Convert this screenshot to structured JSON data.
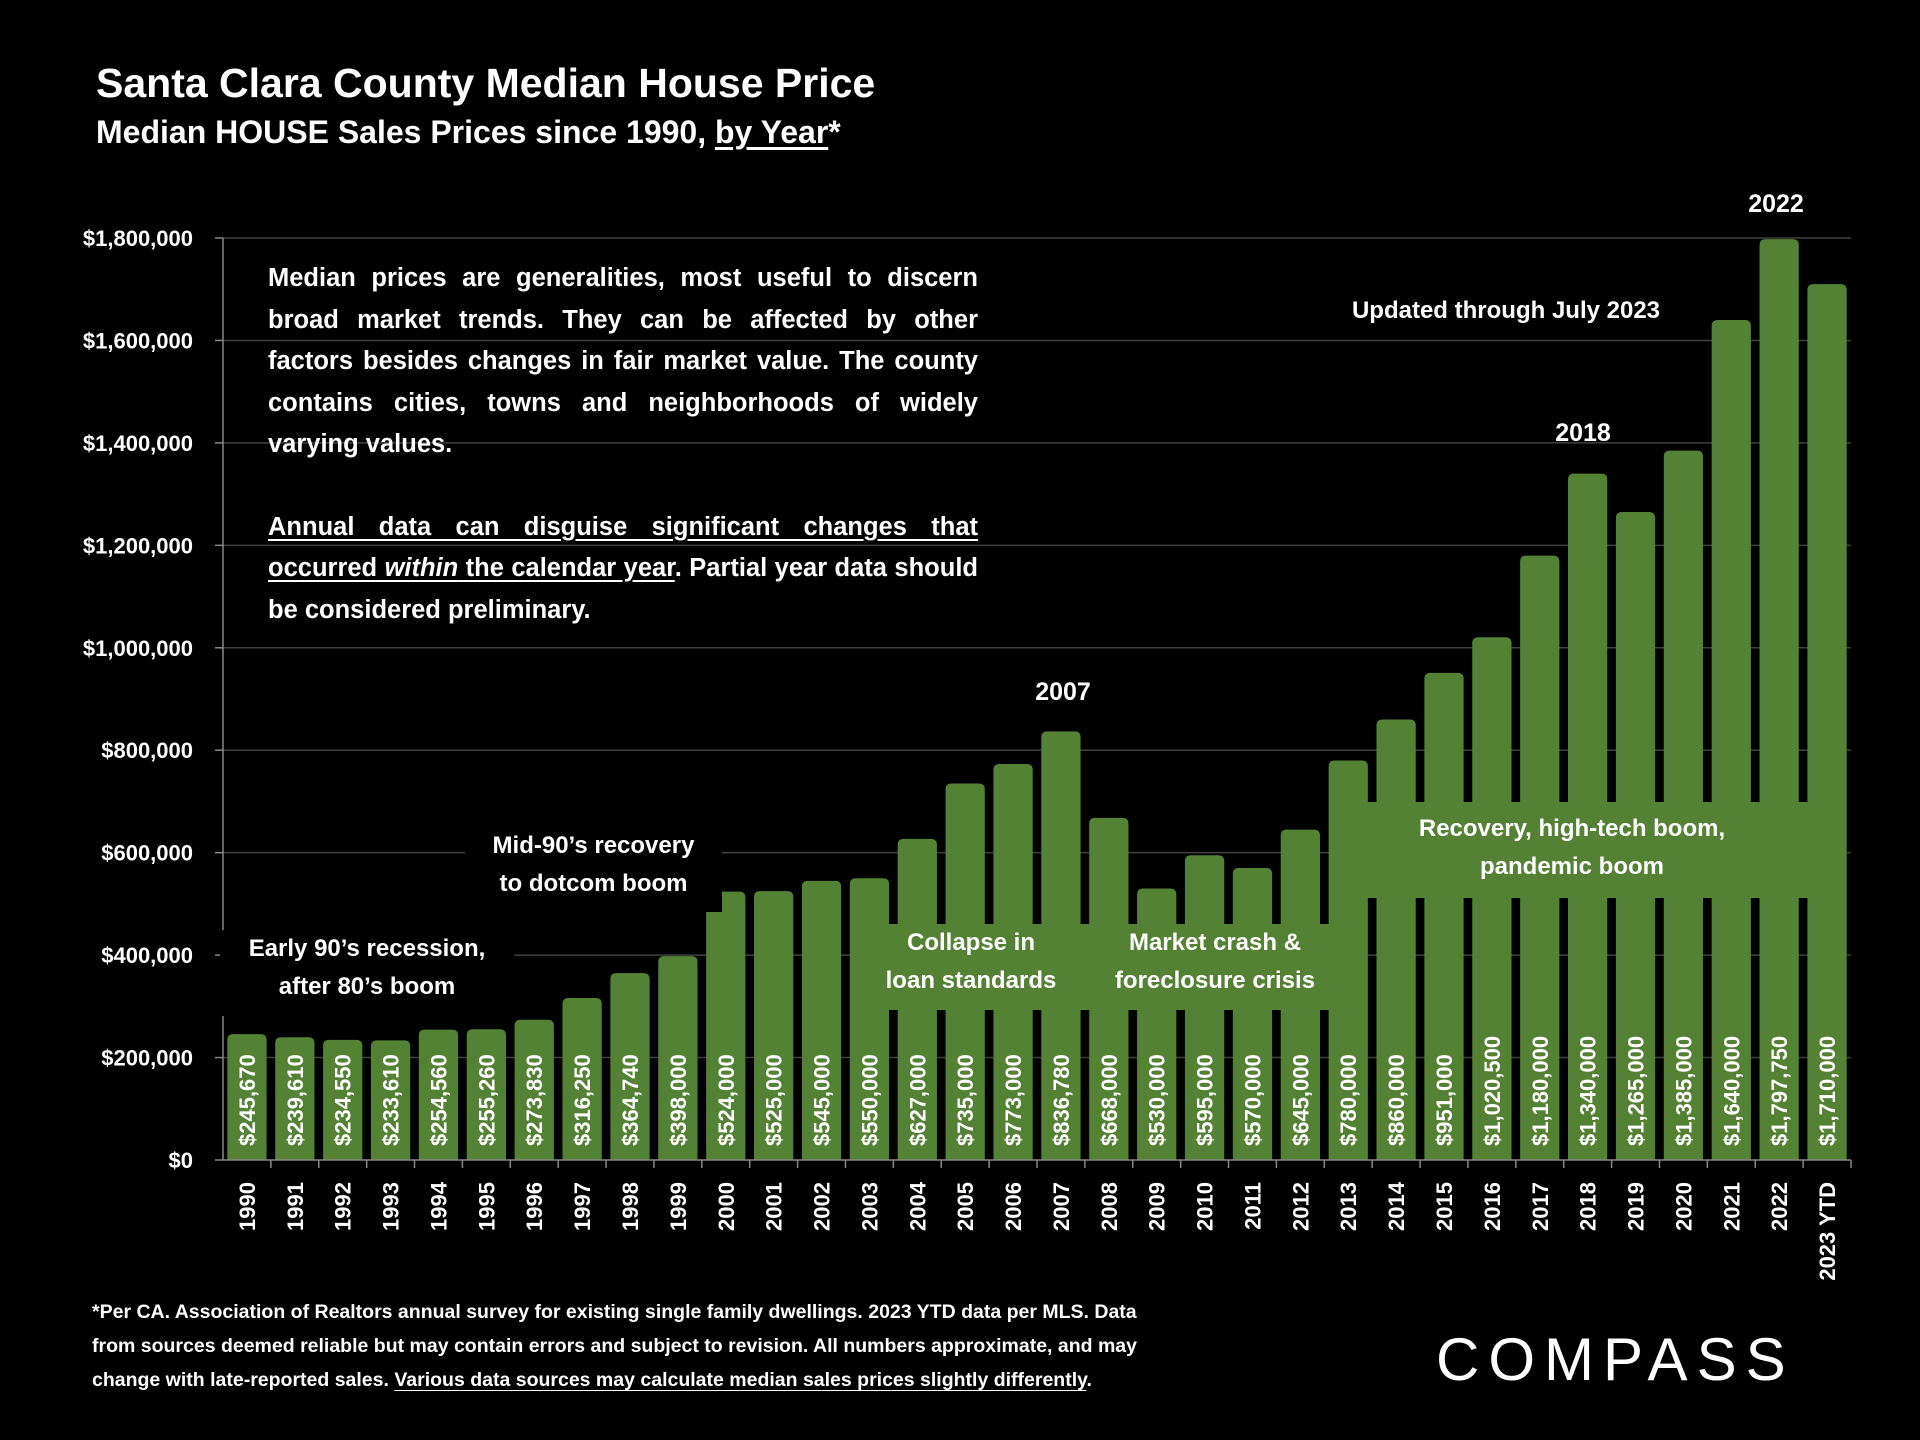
{
  "header": {
    "title": "Santa Clara County Median House Price",
    "subtitle_pre": "Median HOUSE Sales Prices since 1990, ",
    "subtitle_link": "by Year",
    "subtitle_post": "*"
  },
  "note": {
    "p1": "Median prices are generalities, most useful to discern broad market trends. They can be affected by other factors besides changes in fair market value. The county contains cities, towns and neighborhoods of widely varying values.",
    "p2_u1": "Annual data can disguise significant changes that occurred ",
    "p2_u_em": "within",
    "p2_u2": " the calendar year",
    "p2_rest": ". Partial year data should be considered preliminary."
  },
  "annotations": {
    "early90s": [
      "Early 90’s recession,",
      "after 80’s boom"
    ],
    "mid90s": [
      "Mid-90’s recovery",
      "to dotcom boom"
    ],
    "collapse": [
      "Collapse in",
      "loan standards"
    ],
    "crash": [
      "Market crash &",
      "foreclosure crisis"
    ],
    "recovery": [
      "Recovery, high-tech boom,",
      "pandemic boom"
    ],
    "y2007": "2007",
    "y2018": "2018",
    "y2022": "2022",
    "updated": "Updated through July 2023"
  },
  "footer": {
    "line1": "*Per CA. Association of Realtors annual survey for existing single family dwellings. 2023 YTD data per MLS. Data",
    "line2": "from sources deemed reliable but may contain errors and subject to revision. All numbers approximate, and may",
    "line3_pre": "change with late-reported sales. ",
    "line3_link": "Various data sources may calculate median sales prices slightly differently",
    "line3_post": "."
  },
  "logo": "COMPASS",
  "colors": {
    "bar": "#548235",
    "background": "#000000",
    "grid": "#404040",
    "text": "#ffffff"
  },
  "chart_data": {
    "type": "bar",
    "title": "Santa Clara County Median House Price",
    "xlabel": "",
    "ylabel": "",
    "ylim": [
      0,
      1800000
    ],
    "grid": true,
    "yticks": [
      0,
      200000,
      400000,
      600000,
      800000,
      1000000,
      1200000,
      1400000,
      1600000,
      1800000
    ],
    "ytick_labels": [
      "$0",
      "$200,000",
      "$400,000",
      "$600,000",
      "$800,000",
      "$1,000,000",
      "$1,200,000",
      "$1,400,000",
      "$1,600,000",
      "$1,800,000"
    ],
    "categories": [
      "1990",
      "1991",
      "1992",
      "1993",
      "1994",
      "1995",
      "1996",
      "1997",
      "1998",
      "1999",
      "2000",
      "2001",
      "2002",
      "2003",
      "2004",
      "2005",
      "2006",
      "2007",
      "2008",
      "2009",
      "2010",
      "2011",
      "2012",
      "2013",
      "2014",
      "2015",
      "2016",
      "2017",
      "2018",
      "2019",
      "2020",
      "2021",
      "2022",
      "2023 YTD"
    ],
    "values": [
      245670,
      239610,
      234550,
      233610,
      254560,
      255260,
      273830,
      316250,
      364740,
      398000,
      524000,
      525000,
      545000,
      550000,
      627000,
      735000,
      773000,
      836780,
      668000,
      530000,
      595000,
      570000,
      645000,
      780000,
      860000,
      951000,
      1020500,
      1180000,
      1340000,
      1265000,
      1385000,
      1640000,
      1797750,
      1710000
    ],
    "labels": [
      "$245,670",
      "$239,610",
      "$234,550",
      "$233,610",
      "$254,560",
      "$255,260",
      "$273,830",
      "$316,250",
      "$364,740",
      "$398,000",
      "$524,000",
      "$525,000",
      "$545,000",
      "$550,000",
      "$627,000",
      "$735,000",
      "$773,000",
      "$836,780",
      "$668,000",
      "$530,000",
      "$595,000",
      "$570,000",
      "$645,000",
      "$780,000",
      "$860,000",
      "$951,000",
      "$1,020,500",
      "$1,180,000",
      "$1,340,000",
      "$1,265,000",
      "$1,385,000",
      "$1,640,000",
      "$1,797,750",
      "$1,710,000"
    ]
  }
}
